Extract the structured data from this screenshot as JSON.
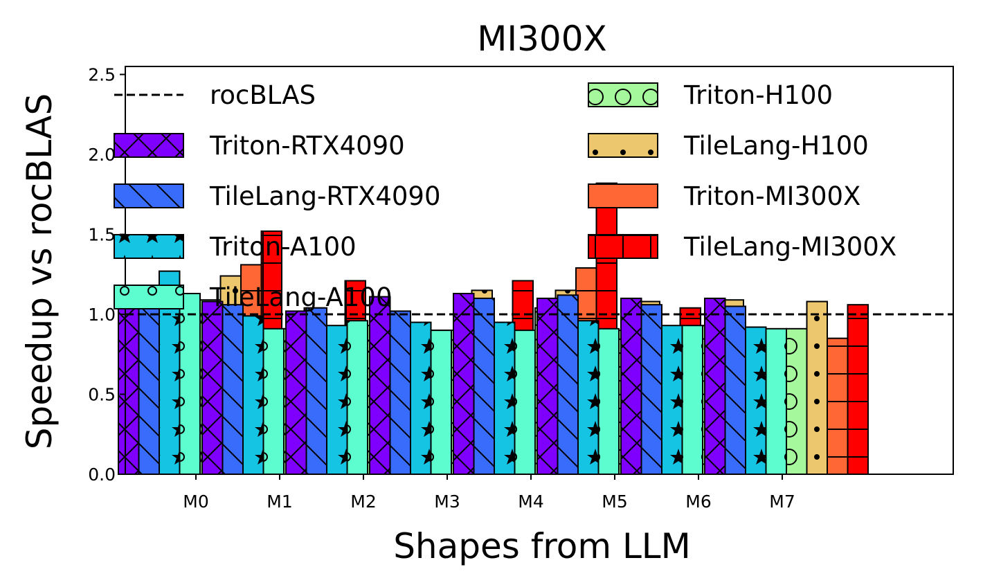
{
  "chart_data": {
    "type": "bar",
    "title": "MI300X",
    "xlabel": "Shapes from LLM",
    "ylabel": "Speedup vs rocBLAS",
    "ylim": [
      0.0,
      2.55
    ],
    "yticks": [
      0.0,
      0.5,
      1.0,
      1.5,
      2.0,
      2.5
    ],
    "ytick_labels": [
      "0.0",
      "0.5",
      "1.0",
      "1.5",
      "2.0",
      "2.5"
    ],
    "categories": [
      "M0",
      "M1",
      "M2",
      "M3",
      "M4",
      "M5",
      "M6",
      "M7"
    ],
    "baseline": {
      "name": "rocBLAS",
      "value": 1.0
    },
    "legend_position": "top, two columns",
    "grid": false,
    "series": [
      {
        "name": "Triton-RTX4090",
        "color": "#7f00ff",
        "hatch": "x",
        "values": [
          1.1,
          1.08,
          1.02,
          1.11,
          1.13,
          1.1,
          1.1,
          1.1
        ]
      },
      {
        "name": "TileLang-RTX4090",
        "color": "#3a6cfc",
        "hatch": "\\",
        "values": [
          1.07,
          1.06,
          1.04,
          1.02,
          1.1,
          1.12,
          1.06,
          1.05
        ]
      },
      {
        "name": "Triton-A100",
        "color": "#15c3e2",
        "hatch": "*",
        "values": [
          1.27,
          0.99,
          0.93,
          0.95,
          0.95,
          0.96,
          0.93,
          0.92
        ]
      },
      {
        "name": "TileLang-A100",
        "color": "#5efdd0",
        "hatch": "o",
        "values": [
          1.13,
          0.91,
          0.96,
          0.9,
          0.9,
          0.91,
          0.93,
          0.91
        ]
      },
      {
        "name": "Triton-H100",
        "color": "#a5f89b",
        "hatch": "O",
        "values": [
          1.09,
          0.91,
          0.93,
          0.9,
          1.04,
          0.9,
          0.93,
          0.91
        ]
      },
      {
        "name": "TileLang-H100",
        "color": "#edc76e",
        "hatch": ".",
        "values": [
          1.24,
          1.04,
          0.96,
          1.15,
          1.15,
          1.08,
          1.09,
          1.08
        ]
      },
      {
        "name": "Triton-MI300X",
        "color": "#ff6835",
        "hatch": "-",
        "values": [
          1.31,
          0.89,
          0.74,
          0.92,
          1.29,
          0.76,
          0.75,
          0.85
        ]
      },
      {
        "name": "TileLang-MI300X",
        "color": "#ff0000",
        "hatch": "+",
        "values": [
          1.52,
          1.21,
          0.9,
          1.21,
          1.82,
          1.04,
          0.87,
          1.06
        ]
      }
    ]
  }
}
